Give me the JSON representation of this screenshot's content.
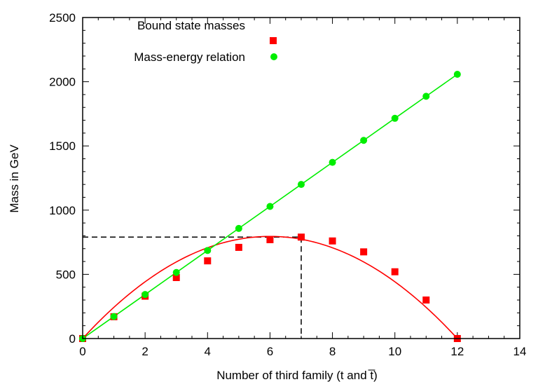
{
  "chart_data": {
    "type": "line",
    "title": "",
    "xlabel": "Number of third family (t and t̅)",
    "ylabel": "Mass in GeV",
    "xlim": [
      0,
      14
    ],
    "ylim": [
      0,
      2500
    ],
    "x_ticks": [
      "0",
      "2",
      "4",
      "6",
      "8",
      "10",
      "12",
      "14"
    ],
    "y_ticks": [
      "0",
      "500",
      "1000",
      "1500",
      "2000",
      "2500"
    ],
    "grid": false,
    "legend_position": "top-left",
    "series": [
      {
        "name": "Bound state masses",
        "marker": "square",
        "color": "#ff0000",
        "x": [
          0,
          1,
          2,
          3,
          4,
          5,
          6,
          7,
          8,
          9,
          10,
          11,
          12
        ],
        "y": [
          0,
          170,
          330,
          475,
          605,
          710,
          770,
          790,
          760,
          675,
          520,
          300,
          0
        ]
      },
      {
        "name": "Mass-energy relation",
        "marker": "circle",
        "color": "#00ee00",
        "x": [
          0,
          1,
          2,
          3,
          4,
          5,
          6,
          7,
          8,
          9,
          10,
          11,
          12
        ],
        "y": [
          0,
          171.5,
          343,
          514.5,
          686,
          857.5,
          1029,
          1200.5,
          1372,
          1543.5,
          1715,
          1886.5,
          2058
        ]
      }
    ],
    "annotations": {
      "peak_x": 7,
      "peak_y": 790
    }
  }
}
